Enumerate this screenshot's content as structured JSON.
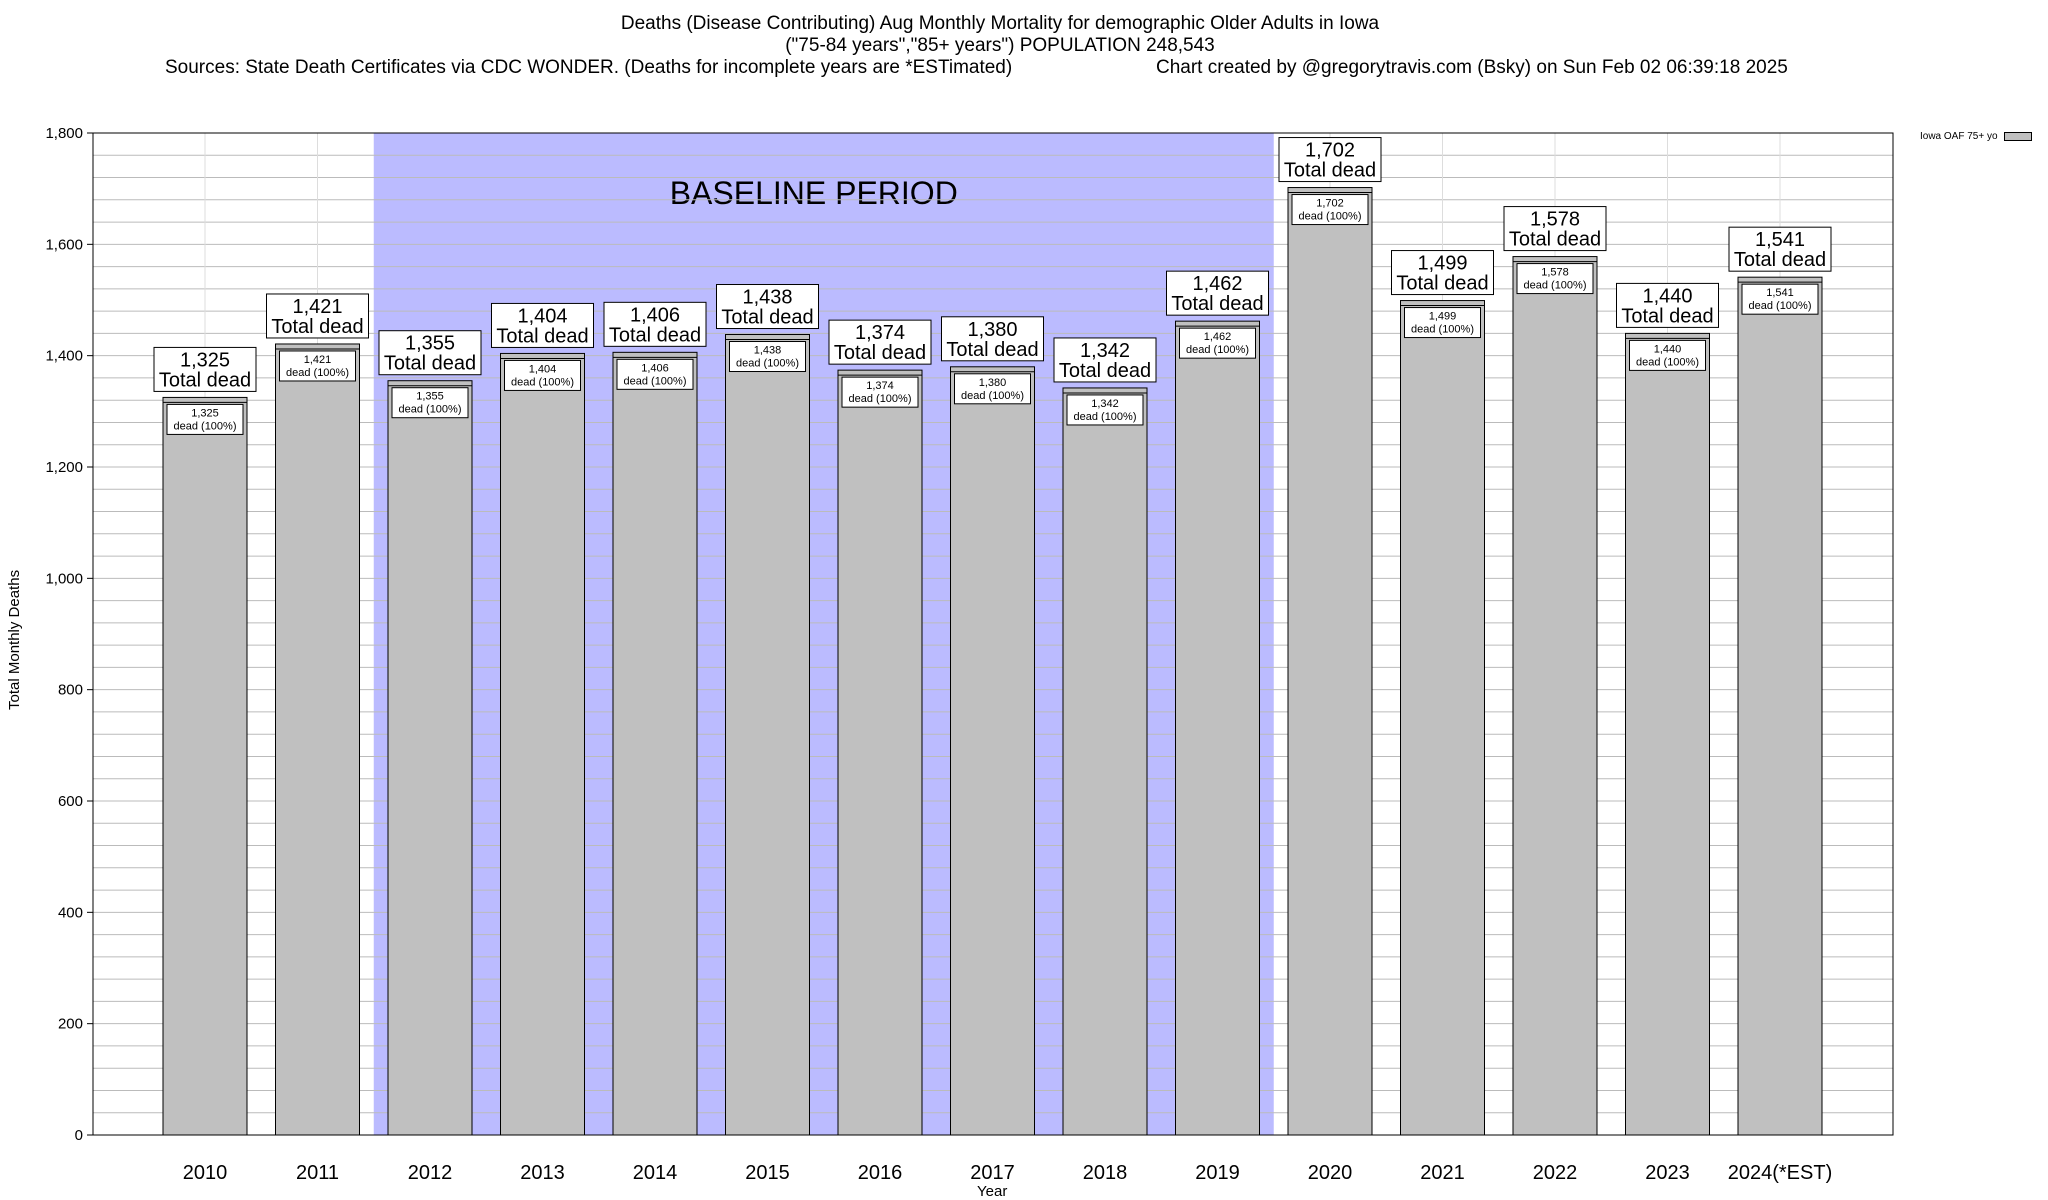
{
  "title": {
    "line1": "Deaths (Disease Contributing) Aug Monthly Mortality for demographic Older Adults in Iowa",
    "line2": "(\"75-84 years\",\"85+ years\") POPULATION 248,543",
    "source": "Sources: State Death Certificates via CDC WONDER. (Deaths for incomplete years are *ESTimated)",
    "credit": "Chart created by @gregorytravis.com (Bsky) on Sun Feb 02 06:39:18 2025"
  },
  "legend": {
    "label": "Iowa OAF 75+ yo"
  },
  "colors": {
    "bar": "#c0c0c0",
    "baseline": "#bbbbff",
    "grid": "#bbbbbb"
  },
  "chart_data": {
    "type": "bar",
    "title": "Deaths (Disease Contributing) Aug Monthly Mortality for demographic Older Adults in Iowa",
    "xlabel": "Year",
    "ylabel": "Total Monthly Deaths",
    "ylim": [
      0,
      1800
    ],
    "yticks": [
      0,
      200,
      400,
      600,
      800,
      1000,
      1200,
      1400,
      1600,
      1800
    ],
    "ytick_labels": [
      "0",
      "200",
      "400",
      "600",
      "800",
      "1,000",
      "1,200",
      "1,400",
      "1,600",
      "1,800"
    ],
    "categories": [
      "2010",
      "2011",
      "2012",
      "2013",
      "2014",
      "2015",
      "2016",
      "2017",
      "2018",
      "2019",
      "2020",
      "2021",
      "2022",
      "2023",
      "2024(*EST)"
    ],
    "series": [
      {
        "name": "Iowa OAF 75+ yo",
        "values": [
          1325,
          1421,
          1355,
          1404,
          1406,
          1438,
          1374,
          1380,
          1342,
          1462,
          1702,
          1499,
          1578,
          1440,
          1541
        ]
      }
    ],
    "top_labels": [
      "1,325",
      "1,421",
      "1,355",
      "1,404",
      "1,406",
      "1,438",
      "1,374",
      "1,380",
      "1,342",
      "1,462",
      "1,702",
      "1,499",
      "1,578",
      "1,440",
      "1,541"
    ],
    "top_label_suffix": "Total dead",
    "inner_label_suffix": "dead (100%)",
    "baseline": {
      "label": "BASELINE PERIOD",
      "from": "2012",
      "to": "2019"
    },
    "grid": true,
    "legend_position": "top-right"
  }
}
